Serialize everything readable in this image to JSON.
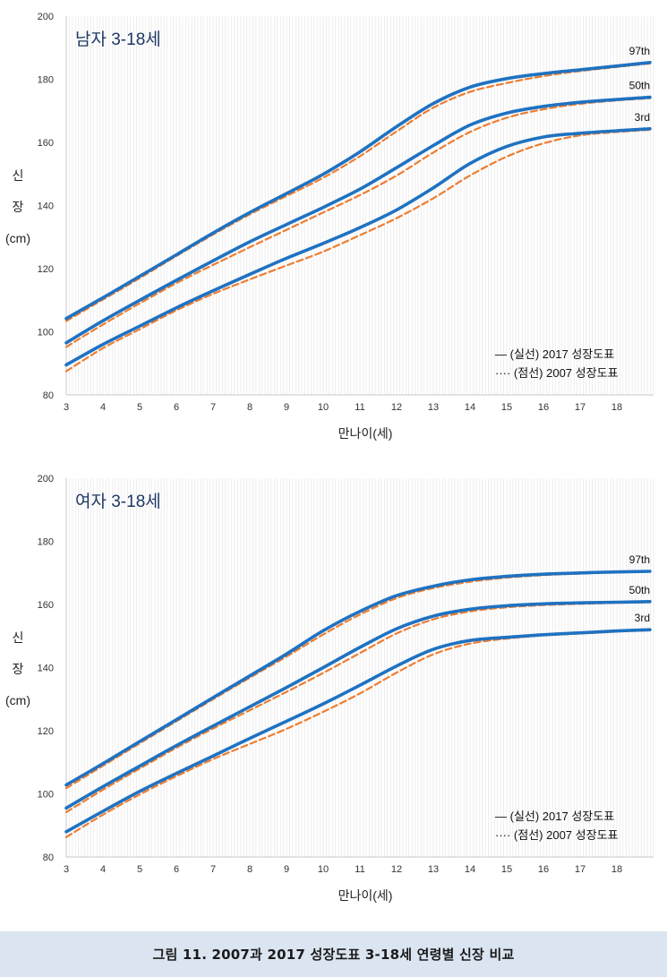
{
  "chart_data": [
    {
      "type": "line",
      "title": "남자 3-18세",
      "xlabel": "만나이(세)",
      "ylabel": [
        "신",
        "장",
        "(cm)"
      ],
      "xlim": [
        3,
        19
      ],
      "ylim": [
        80,
        200
      ],
      "xticks": [
        3,
        4,
        5,
        6,
        7,
        8,
        9,
        10,
        11,
        12,
        13,
        14,
        15,
        16,
        17,
        18
      ],
      "yticks": [
        80,
        100,
        120,
        140,
        160,
        180,
        200
      ],
      "legend": [
        "— (실선) 2017 성장도표",
        "···· (점선) 2007 성장도표"
      ],
      "legend_position": "bottom-right",
      "grid": "vertical-minor",
      "series": [
        {
          "name": "97th",
          "style": "2017",
          "x": [
            3,
            4,
            5,
            6,
            7,
            8,
            9,
            10,
            11,
            12,
            13,
            14,
            15,
            16,
            17,
            18,
            18.9
          ],
          "values": [
            104.2,
            110.8,
            117.6,
            124.4,
            131.3,
            137.8,
            143.8,
            149.9,
            157.0,
            165.0,
            172.3,
            177.5,
            180.2,
            181.8,
            183.0,
            184.2,
            185.3
          ]
        },
        {
          "name": "97th-2007",
          "style": "2007",
          "x": [
            3,
            4,
            5,
            6,
            7,
            8,
            9,
            10,
            11,
            12,
            13,
            14,
            15,
            16,
            17,
            18,
            18.9
          ],
          "values": [
            103.4,
            110.2,
            117.0,
            124.0,
            130.8,
            137.2,
            143.0,
            148.8,
            155.6,
            163.5,
            171.0,
            176.0,
            178.8,
            181.0,
            182.6,
            183.9,
            185.0
          ]
        },
        {
          "name": "50th",
          "style": "2017",
          "x": [
            3,
            4,
            5,
            6,
            7,
            8,
            9,
            10,
            11,
            12,
            13,
            14,
            15,
            16,
            17,
            18,
            18.9
          ],
          "values": [
            96.5,
            103.5,
            110.0,
            116.3,
            122.5,
            128.5,
            134.0,
            139.4,
            145.2,
            152.0,
            159.0,
            165.5,
            169.3,
            171.4,
            172.7,
            173.6,
            174.3
          ]
        },
        {
          "name": "50th-2007",
          "style": "2007",
          "x": [
            3,
            4,
            5,
            6,
            7,
            8,
            9,
            10,
            11,
            12,
            13,
            14,
            15,
            16,
            17,
            18,
            18.9
          ],
          "values": [
            95.2,
            102.3,
            109.0,
            115.4,
            121.2,
            126.8,
            132.3,
            137.8,
            143.3,
            149.5,
            156.8,
            163.3,
            167.8,
            170.5,
            172.2,
            173.3,
            174.0
          ]
        },
        {
          "name": "3rd",
          "style": "2017",
          "x": [
            3,
            4,
            5,
            6,
            7,
            8,
            9,
            10,
            11,
            12,
            13,
            14,
            15,
            16,
            17,
            18,
            18.9
          ],
          "values": [
            89.5,
            96.0,
            101.8,
            107.6,
            113.0,
            118.2,
            123.3,
            128.0,
            133.0,
            138.6,
            145.6,
            153.3,
            158.7,
            161.7,
            162.9,
            163.7,
            164.3
          ]
        },
        {
          "name": "3rd-2007",
          "style": "2007",
          "x": [
            3,
            4,
            5,
            6,
            7,
            8,
            9,
            10,
            11,
            12,
            13,
            14,
            15,
            16,
            17,
            18,
            18.9
          ],
          "values": [
            87.5,
            94.8,
            100.8,
            106.8,
            112.0,
            116.6,
            121.0,
            125.4,
            130.6,
            136.0,
            142.3,
            149.5,
            155.5,
            159.7,
            162.2,
            163.3,
            164.0
          ]
        }
      ],
      "series_labels": [
        "97th",
        "50th",
        "3rd"
      ]
    },
    {
      "type": "line",
      "title": "여자 3-18세",
      "xlabel": "만나이(세)",
      "ylabel": [
        "신",
        "장",
        "(cm)"
      ],
      "xlim": [
        3,
        19
      ],
      "ylim": [
        80,
        200
      ],
      "xticks": [
        3,
        4,
        5,
        6,
        7,
        8,
        9,
        10,
        11,
        12,
        13,
        14,
        15,
        16,
        17,
        18
      ],
      "yticks": [
        80,
        100,
        120,
        140,
        160,
        180,
        200
      ],
      "legend": [
        "— (실선) 2017 성장도표",
        "···· (점선) 2007 성장도표"
      ],
      "legend_position": "bottom-right",
      "grid": "vertical-minor",
      "series": [
        {
          "name": "97th",
          "style": "2017",
          "x": [
            3,
            4,
            5,
            6,
            7,
            8,
            9,
            10,
            11,
            12,
            13,
            14,
            15,
            16,
            17,
            18,
            18.9
          ],
          "values": [
            102.8,
            109.6,
            116.6,
            123.5,
            130.5,
            137.4,
            144.3,
            151.7,
            157.8,
            162.8,
            165.8,
            167.8,
            168.9,
            169.6,
            170.0,
            170.3,
            170.5
          ]
        },
        {
          "name": "97th-2007",
          "style": "2007",
          "x": [
            3,
            4,
            5,
            6,
            7,
            8,
            9,
            10,
            11,
            12,
            13,
            14,
            15,
            16,
            17,
            18,
            18.9
          ],
          "values": [
            101.8,
            108.9,
            116.0,
            123.0,
            130.0,
            136.8,
            143.5,
            150.5,
            156.8,
            162.0,
            165.2,
            167.2,
            168.5,
            169.3,
            169.8,
            170.2,
            170.4
          ]
        },
        {
          "name": "50th",
          "style": "2017",
          "x": [
            3,
            4,
            5,
            6,
            7,
            8,
            9,
            10,
            11,
            12,
            13,
            14,
            15,
            16,
            17,
            18,
            18.9
          ],
          "values": [
            95.5,
            102.3,
            108.8,
            115.3,
            121.5,
            127.6,
            133.7,
            140.0,
            146.4,
            152.3,
            156.3,
            158.5,
            159.6,
            160.2,
            160.5,
            160.7,
            160.9
          ]
        },
        {
          "name": "50th-2007",
          "style": "2007",
          "x": [
            3,
            4,
            5,
            6,
            7,
            8,
            9,
            10,
            11,
            12,
            13,
            14,
            15,
            16,
            17,
            18,
            18.9
          ],
          "values": [
            94.2,
            101.3,
            108.0,
            114.6,
            120.7,
            126.5,
            132.3,
            138.3,
            144.6,
            150.8,
            155.3,
            157.8,
            159.1,
            159.8,
            160.2,
            160.5,
            160.7
          ]
        },
        {
          "name": "3rd",
          "style": "2017",
          "x": [
            3,
            4,
            5,
            6,
            7,
            8,
            9,
            10,
            11,
            12,
            13,
            14,
            15,
            16,
            17,
            18,
            18.9
          ],
          "values": [
            88.0,
            94.5,
            100.8,
            106.5,
            112.0,
            117.6,
            123.0,
            128.5,
            134.4,
            140.5,
            145.8,
            148.6,
            149.6,
            150.4,
            151.0,
            151.6,
            152.0
          ]
        },
        {
          "name": "3rd-2007",
          "style": "2007",
          "x": [
            3,
            4,
            5,
            6,
            7,
            8,
            9,
            10,
            11,
            12,
            13,
            14,
            15,
            16,
            17,
            18,
            18.9
          ],
          "values": [
            86.3,
            93.4,
            99.8,
            105.6,
            111.0,
            115.8,
            120.6,
            126.0,
            131.8,
            138.4,
            144.2,
            147.6,
            149.2,
            150.2,
            150.8,
            151.4,
            151.8
          ]
        }
      ],
      "series_labels": [
        "97th",
        "50th",
        "3rd"
      ]
    }
  ],
  "colors": {
    "line_2017": "#1f72c1",
    "line_2007": "#ed7d31",
    "minor_grid": "#e3e3e3",
    "axis": "#c8c8c8",
    "title": "#1f3864",
    "caption_bg": "#dbe5f1"
  },
  "caption": "그림 11. 2007과 2017 성장도표 3-18세 연령별 신장 비교"
}
